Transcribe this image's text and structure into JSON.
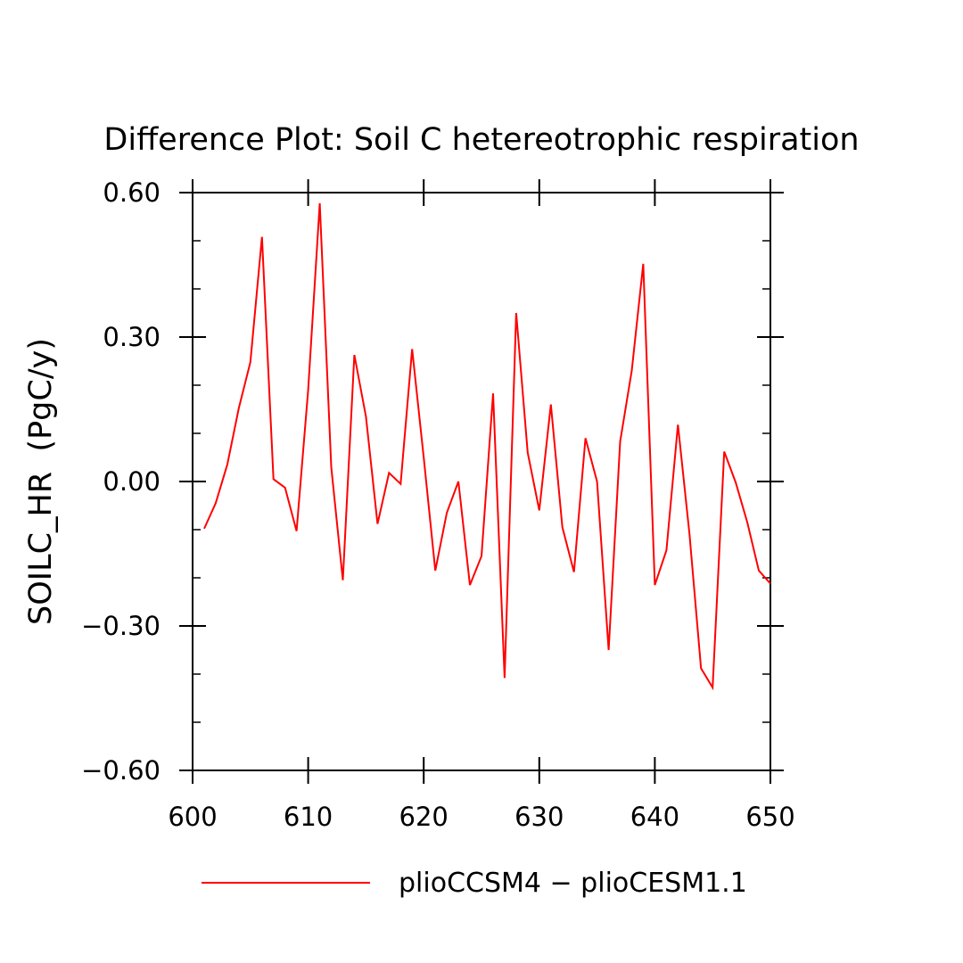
{
  "chart_data": {
    "type": "line",
    "title": "Difference Plot: Soil C hetereotrophic respiration",
    "xlabel": "",
    "ylabel": "SOILC_HR  (PgC/y)",
    "xlim": [
      600,
      650
    ],
    "ylim": [
      -0.6,
      0.6
    ],
    "x_ticks": [
      600,
      610,
      620,
      630,
      640,
      650
    ],
    "x_tick_labels": [
      "600",
      "610",
      "620",
      "630",
      "640",
      "650"
    ],
    "y_ticks": [
      0.6,
      0.3,
      0.0,
      -0.3,
      -0.6
    ],
    "y_tick_labels": [
      "0.60",
      "0.30",
      "0.00",
      "−0.30",
      "−0.60"
    ],
    "grid": false,
    "legend_position": "bottom",
    "series": [
      {
        "name": "plioCCSM4 − plioCESM1.1",
        "color": "#ff0000",
        "x": [
          601,
          602,
          603,
          604,
          605,
          606,
          607,
          608,
          609,
          610,
          611,
          612,
          613,
          614,
          615,
          616,
          617,
          618,
          619,
          620,
          621,
          622,
          623,
          624,
          625,
          626,
          627,
          628,
          629,
          630,
          631,
          632,
          633,
          634,
          635,
          636,
          637,
          638,
          639,
          640,
          641,
          642,
          643,
          644,
          645,
          646,
          647,
          648,
          649,
          650
        ],
        "values": [
          -0.098,
          -0.045,
          0.035,
          0.152,
          0.248,
          0.508,
          0.005,
          -0.013,
          -0.103,
          0.19,
          0.578,
          0.03,
          -0.205,
          0.263,
          0.135,
          -0.088,
          0.018,
          -0.005,
          0.275,
          0.05,
          -0.185,
          -0.065,
          0.0,
          -0.215,
          -0.155,
          0.183,
          -0.408,
          0.35,
          0.06,
          -0.06,
          0.16,
          -0.095,
          -0.188,
          0.09,
          0.0,
          -0.35,
          0.083,
          0.23,
          0.452,
          -0.215,
          -0.143,
          0.118,
          -0.11,
          -0.388,
          -0.428,
          0.062,
          -0.002,
          -0.085,
          -0.185,
          -0.212
        ]
      }
    ]
  }
}
